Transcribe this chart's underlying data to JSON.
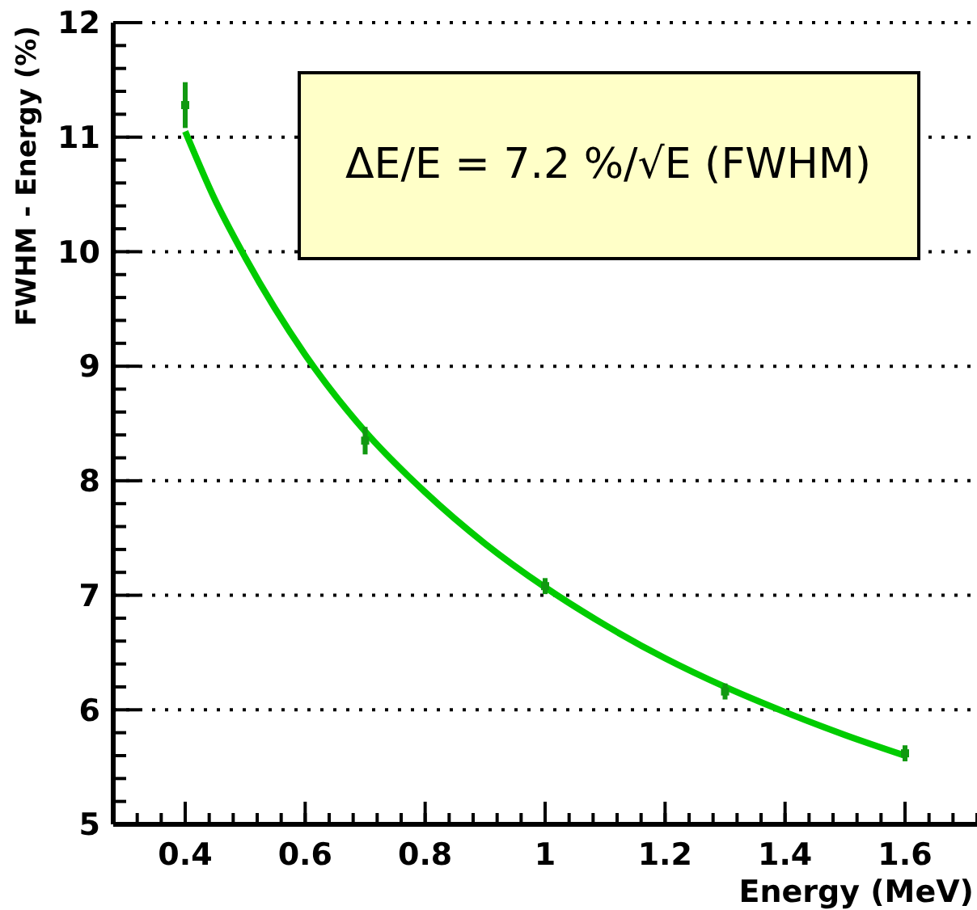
{
  "chart_data": {
    "type": "scatter",
    "xlabel": "Energy (MeV)",
    "ylabel": "FWHM - Energy (%)",
    "xlim": [
      0.28,
      1.72
    ],
    "xticks": [
      0.4,
      0.6,
      0.8,
      {
        "value": 1,
        "label": "1"
      },
      1.2,
      1.4,
      1.6
    ],
    "ylim": [
      5,
      12
    ],
    "yticks": [
      5,
      6,
      7,
      8,
      9,
      10,
      11,
      12
    ],
    "grid": "y",
    "annotations": [
      "ΔE/E = 7.2 %/√E (FWHM)"
    ],
    "series": [
      {
        "type": "scatter",
        "marker": "square",
        "color": "#119911",
        "x": [
          0.4,
          0.7,
          1.0,
          1.3,
          1.6
        ],
        "values": [
          11.28,
          8.35,
          7.08,
          6.16,
          5.62
        ],
        "errors": [
          0.2,
          0.12,
          0.07,
          0.07,
          0.07
        ]
      },
      {
        "type": "line",
        "marker": "none",
        "color": "#00cc00",
        "x": [
          0.4,
          0.45,
          0.5,
          0.6,
          0.7,
          0.8,
          0.9,
          1.0,
          1.1,
          1.2,
          1.3,
          1.4,
          1.5,
          1.6
        ],
        "values": [
          11.05,
          10.45,
          9.95,
          9.1,
          8.43,
          7.9,
          7.45,
          7.07,
          6.74,
          6.45,
          6.2,
          5.98,
          5.78,
          5.6
        ]
      }
    ]
  }
}
